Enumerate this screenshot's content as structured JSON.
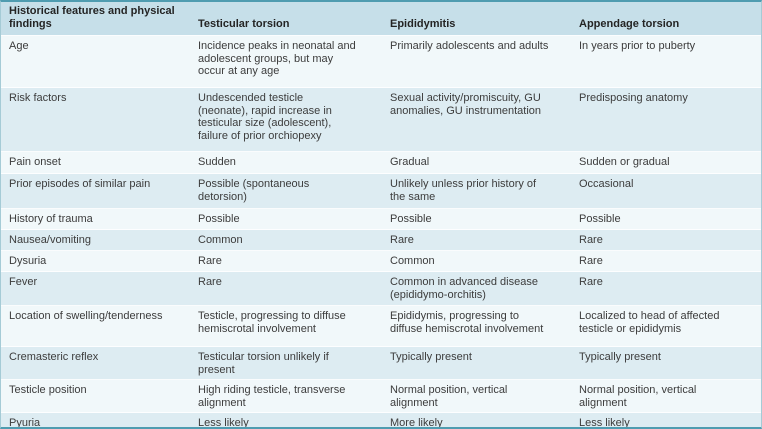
{
  "table": {
    "headers": [
      "Historical features and physical findings",
      "Testicular torsion",
      "Epididymitis",
      "Appendage torsion"
    ],
    "rows": [
      {
        "cells": [
          "Age",
          "Incidence peaks in neonatal and adolescent groups, but may occur at any age",
          "Primarily adolescents and adults",
          "In years prior to puberty"
        ]
      },
      {
        "cells": [
          "Risk factors",
          "Undescended testicle (neonate), rapid increase in testicular size (adolescent), failure of prior orchiopexy",
          "Sexual activity/promiscuity, GU anomalies, GU instrumentation",
          "Predisposing anatomy"
        ]
      },
      {
        "cells": [
          "Pain onset",
          "Sudden",
          "Gradual",
          "Sudden or gradual"
        ]
      },
      {
        "cells": [
          "Prior episodes of similar pain",
          "Possible (spontaneous detorsion)",
          "Unlikely unless prior history of the same",
          "Occasional"
        ]
      },
      {
        "cells": [
          "History of trauma",
          "Possible",
          "Possible",
          "Possible"
        ]
      },
      {
        "cells": [
          "Nausea/vomiting",
          "Common",
          "Rare",
          "Rare"
        ]
      },
      {
        "cells": [
          "Dysuria",
          "Rare",
          "Common",
          "Rare"
        ]
      },
      {
        "cells": [
          "Fever",
          "Rare",
          "Common in advanced disease (epididymo-orchitis)",
          "Rare"
        ]
      },
      {
        "cells": [
          "Location of swelling/tenderness",
          "Testicle, progressing to diffuse hemiscrotal involvement",
          "Epididymis, progressing to diffuse hemiscrotal involvement",
          "Localized to head of affected testicle or epididymis"
        ]
      },
      {
        "cells": [
          "Cremasteric reflex",
          "Testicular torsion unlikely if present",
          "Typically present",
          "Typically present"
        ]
      },
      {
        "cells": [
          "Testicle position",
          "High riding testicle, transverse alignment",
          "Normal position, vertical alignment",
          "Normal position, vertical alignment"
        ]
      },
      {
        "cells": [
          "Pyuria",
          "Less likely",
          "More likely",
          "Less likely"
        ]
      }
    ]
  },
  "colors": {
    "header_bg": "#c6dfe9",
    "row_light": "#f1f8fa",
    "row_shaded": "#ddecf2",
    "border_accent": "#4f9cb0",
    "side_border": "#a5cbd6",
    "text": "#3c3c3c"
  }
}
